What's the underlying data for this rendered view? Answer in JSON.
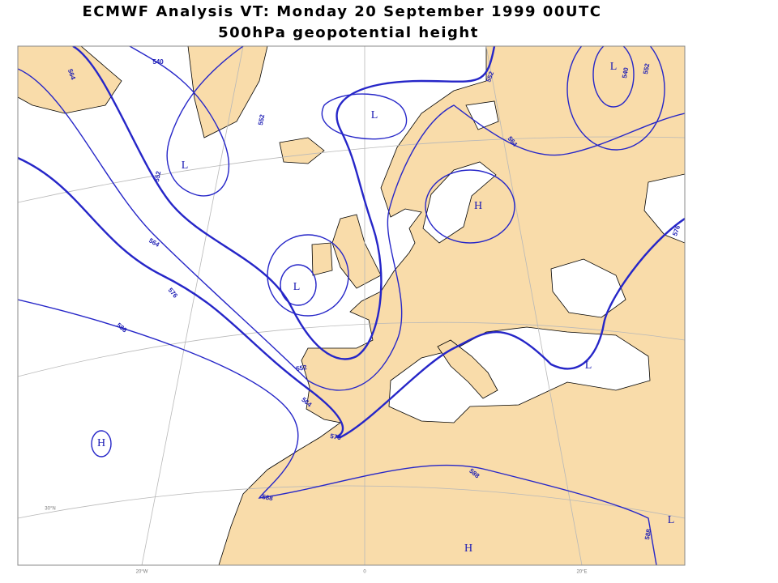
{
  "header": {
    "title": "ECMWF  Analysis VT: Monday 20 September 1999 00UTC",
    "subtitle": "500hPa  geopotential height"
  },
  "map": {
    "centers": [
      "L",
      "L",
      "L",
      "L",
      "H",
      "L",
      "H",
      "L",
      "H"
    ],
    "contour_labels": [
      540,
      564,
      552,
      564,
      576,
      588,
      552,
      564,
      576,
      588,
      588,
      588,
      552,
      564,
      540,
      552,
      576,
      552
    ],
    "graticule_labels": [
      "20°W",
      "0",
      "20°E",
      "30°N"
    ]
  }
}
